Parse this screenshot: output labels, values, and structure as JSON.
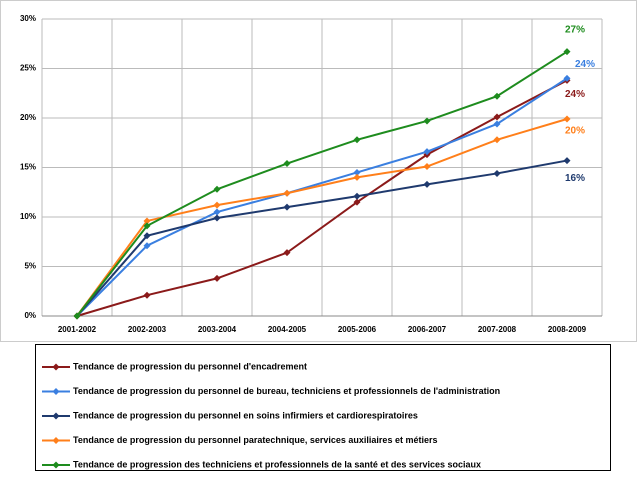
{
  "chart_data": {
    "type": "line",
    "categories": [
      "2001-2002",
      "2002-2003",
      "2003-2004",
      "2004-2005",
      "2005-2006",
      "2006-2007",
      "2007-2008",
      "2008-2009"
    ],
    "ylim": [
      0,
      30
    ],
    "yticks": [
      {
        "value": 0,
        "label": "0%"
      },
      {
        "value": 5,
        "label": "5%"
      },
      {
        "value": 10,
        "label": "10%"
      },
      {
        "value": 15,
        "label": "15%"
      },
      {
        "value": 20,
        "label": "20%"
      },
      {
        "value": 25,
        "label": "25%"
      },
      {
        "value": 30,
        "label": "30%"
      }
    ],
    "grid": true,
    "legend": "bottom",
    "series": [
      {
        "name": "Tendance de progression du personnel d'encadrement",
        "color": "#8b1a1a",
        "values": [
          0,
          2.1,
          3.8,
          6.4,
          11.5,
          16.3,
          20.1,
          23.8
        ],
        "value_labels": [
          null,
          null,
          null,
          null,
          null,
          null,
          null,
          "24%"
        ]
      },
      {
        "name": "Tendance de progression du personnel de bureau, techniciens et professionnels de l'administration",
        "color": "#3a7fe0",
        "values": [
          0,
          7.1,
          10.5,
          12.4,
          14.5,
          16.6,
          19.4,
          24.0
        ],
        "value_labels": [
          null,
          null,
          null,
          null,
          null,
          null,
          null,
          "24%"
        ]
      },
      {
        "name": "Tendance de progression du personnel en soins infirmiers et cardiorespiratoires",
        "color": "#1f3a6e",
        "values": [
          0,
          8.1,
          9.9,
          11.0,
          12.1,
          13.3,
          14.4,
          15.7
        ],
        "value_labels": [
          null,
          null,
          null,
          null,
          null,
          null,
          null,
          "16%"
        ]
      },
      {
        "name": "Tendance de progression du personnel paratechnique, services auxiliaires et métiers",
        "color": "#ff7f1a",
        "values": [
          0,
          9.6,
          11.2,
          12.4,
          14.0,
          15.1,
          17.8,
          19.9
        ],
        "value_labels": [
          null,
          null,
          null,
          null,
          null,
          null,
          null,
          "20%"
        ]
      },
      {
        "name": "Tendance de progression des techniciens et professionnels de la santé et des services sociaux",
        "color": "#1e8c1e",
        "values": [
          0,
          9.1,
          12.8,
          15.4,
          17.8,
          19.7,
          22.2,
          26.7
        ],
        "value_labels": [
          null,
          null,
          null,
          null,
          null,
          null,
          null,
          "27%"
        ]
      }
    ]
  }
}
